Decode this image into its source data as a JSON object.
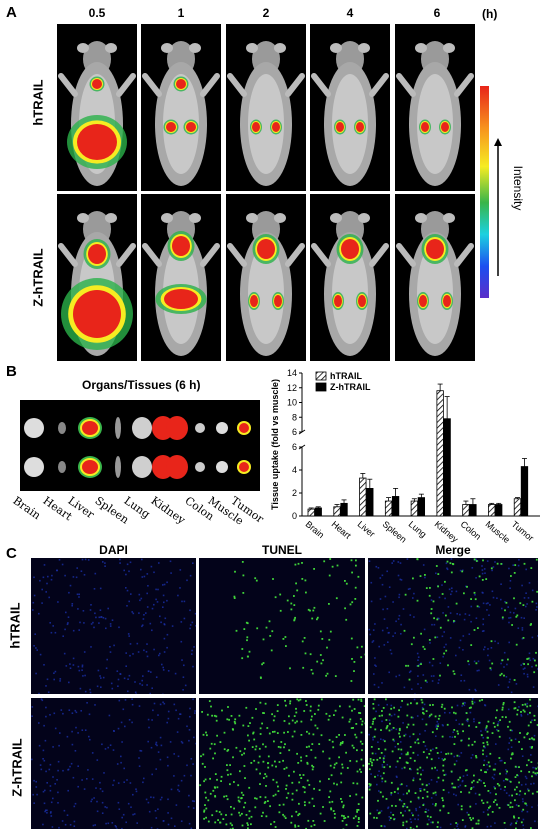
{
  "panelA": {
    "letter": "A",
    "times": [
      "0.5",
      "1",
      "2",
      "4",
      "6"
    ],
    "time_unit": "(h)",
    "rows": [
      "hTRAIL",
      "Z-hTRAIL"
    ],
    "intensity_label": "Intensity"
  },
  "panelB": {
    "letter": "B",
    "organ_title": "Organs/Tissues (6 h)",
    "organ_labels": [
      "Brain",
      "Heart",
      "Liver",
      "Spleen",
      "Lung",
      "Kidney",
      "Colon",
      "Muscle",
      "Tumor"
    ]
  },
  "panelC": {
    "letter": "C",
    "columns": [
      "DAPI",
      "TUNEL",
      "Merge"
    ],
    "rows": [
      "hTRAIL",
      "Z-hTRAIL"
    ]
  },
  "chart_data": {
    "type": "bar",
    "ylabel": "Tissue uptake (fold vs muscle)",
    "categories": [
      "Brain",
      "Heart",
      "Liver",
      "Spleen",
      "Lung",
      "Kidney",
      "Colon",
      "Muscle",
      "Tumor"
    ],
    "series": [
      {
        "name": "hTRAIL",
        "values": [
          0.6,
          0.8,
          3.3,
          1.3,
          1.3,
          11.6,
          1.0,
          1.0,
          1.5
        ],
        "errors": [
          0.1,
          0.2,
          0.4,
          0.3,
          0.2,
          0.9,
          0.3,
          0.1,
          0.1
        ]
      },
      {
        "name": "Z-hTRAIL",
        "values": [
          0.7,
          1.1,
          2.4,
          1.7,
          1.6,
          7.8,
          1.0,
          1.0,
          4.3
        ],
        "errors": [
          0.1,
          0.3,
          0.8,
          0.7,
          0.3,
          3.0,
          0.5,
          0.1,
          0.7
        ]
      }
    ],
    "yaxis_lower": {
      "ylim": [
        0,
        6
      ],
      "ticks": [
        0,
        2,
        4,
        6
      ]
    },
    "yaxis_upper": {
      "ylim": [
        6,
        14
      ],
      "ticks": [
        6,
        8,
        10,
        12,
        14
      ]
    },
    "legend_position": "top",
    "grid": false
  }
}
